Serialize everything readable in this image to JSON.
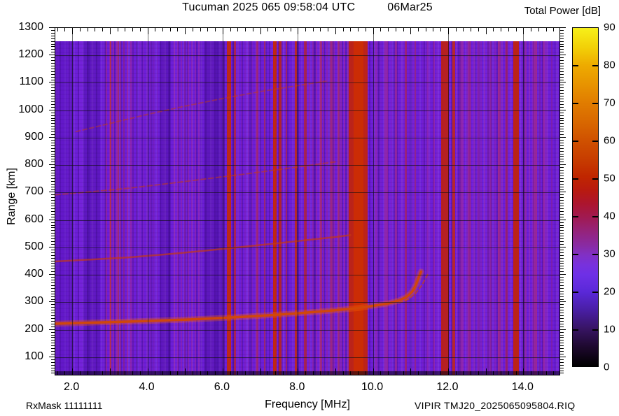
{
  "header": {
    "title_main": "Tucuman 2025 065 09:58:04 UTC",
    "title_date": "06Mar25",
    "colorbar_title": "Total Power [dB]"
  },
  "footer": {
    "rx_mask": "RxMask 11111111",
    "filename": "VIPIR  TMJ20_2025065095804.RIQ"
  },
  "chart_data": {
    "type": "heatmap",
    "title": "Tucuman 2025 065 09:58:04 UTC  06Mar25",
    "xlabel": "Frequency [MHz]",
    "ylabel": "Range [km]",
    "colorbar_label": "Total Power [dB]",
    "x_range_mhz": [
      1.55,
      15.0
    ],
    "y_range_km": [
      31,
      1300
    ],
    "x_major_ticks": [
      2,
      4,
      6,
      8,
      10,
      12,
      14
    ],
    "x_tick_labels": [
      "2.0",
      "4.0",
      "6.0",
      "8.0",
      "10.0",
      "12.0",
      "14.0"
    ],
    "x_minor_step": 0.2,
    "y_major_ticks": [
      100,
      200,
      300,
      400,
      500,
      600,
      700,
      800,
      900,
      1000,
      1100,
      1200,
      1300
    ],
    "y_minor_step": 10,
    "grid": true,
    "data_top_km": 1252,
    "blank_bottom_km": 48,
    "colorbar": {
      "min": 0,
      "max": 90,
      "tick_labels": [
        "90",
        "80",
        "70",
        "60",
        "50",
        "40",
        "30",
        "20",
        "10",
        "0"
      ],
      "inner_ticks": [
        10,
        20,
        30,
        40,
        50,
        60,
        70,
        80
      ],
      "stops": [
        {
          "p": 0,
          "c": "#f7f01a"
        },
        {
          "p": 6,
          "c": "#f2cf07"
        },
        {
          "p": 11,
          "c": "#eeab00"
        },
        {
          "p": 17,
          "c": "#e79200"
        },
        {
          "p": 22,
          "c": "#e17d00"
        },
        {
          "p": 28,
          "c": "#d86700"
        },
        {
          "p": 33,
          "c": "#d05200"
        },
        {
          "p": 39,
          "c": "#c73c00"
        },
        {
          "p": 44,
          "c": "#c02600"
        },
        {
          "p": 48,
          "c": "#b81a10"
        },
        {
          "p": 52,
          "c": "#ac152f"
        },
        {
          "p": 56,
          "c": "#a01a52"
        },
        {
          "p": 60,
          "c": "#95237a"
        },
        {
          "p": 64,
          "c": "#8a2aa0"
        },
        {
          "p": 67,
          "c": "#8130c4"
        },
        {
          "p": 70,
          "c": "#7831dc"
        },
        {
          "p": 73,
          "c": "#6e30e6"
        },
        {
          "p": 78,
          "c": "#5a28d8"
        },
        {
          "p": 83,
          "c": "#4a1fa8"
        },
        {
          "p": 89,
          "c": "#371462"
        },
        {
          "p": 94,
          "c": "#1f0930"
        },
        {
          "p": 100,
          "c": "#000000"
        }
      ]
    },
    "washes": [
      {
        "f0": 1.55,
        "f1": 2.0,
        "c": "rgba(80,15,175,0.35)",
        "striped": false
      },
      {
        "f0": 2.3,
        "f1": 2.75,
        "c": "rgba(60,10,140,0.30)",
        "striped": false
      },
      {
        "f0": 2.9,
        "f1": 3.6,
        "c": "rgba(190,45,110,0.40)",
        "striped": true
      },
      {
        "f0": 3.6,
        "f1": 4.35,
        "c": "rgba(150,40,150,0.18)",
        "striped": true
      },
      {
        "f0": 4.35,
        "f1": 4.62,
        "c": "rgba(55,8,130,0.30)",
        "striped": false
      },
      {
        "f0": 4.7,
        "f1": 5.45,
        "c": "rgba(185,45,125,0.30)",
        "striped": true
      },
      {
        "f0": 5.5,
        "f1": 6.05,
        "c": "rgba(58,10,135,0.32)",
        "striped": false
      },
      {
        "f0": 6.4,
        "f1": 6.9,
        "c": "rgba(170,40,140,0.20)",
        "striped": true
      },
      {
        "f0": 8.3,
        "f1": 9.35,
        "c": "rgba(190,45,115,0.33)",
        "striped": true
      },
      {
        "f0": 10.0,
        "f1": 11.75,
        "c": "rgba(150,35,160,0.15)",
        "striped": true
      },
      {
        "f0": 12.2,
        "f1": 13.6,
        "c": "rgba(180,42,130,0.25)",
        "striped": true
      },
      {
        "f0": 14.15,
        "f1": 14.65,
        "c": "rgba(180,42,135,0.25)",
        "striped": true
      }
    ],
    "rfi_bands": [
      {
        "f": 3.02,
        "w": 0.05,
        "c": "#c03028",
        "o": 0.7
      },
      {
        "f": 3.22,
        "w": 0.04,
        "c": "#b83040",
        "o": 0.6
      },
      {
        "f": 6.17,
        "w": 0.1,
        "c": "#c22a08",
        "o": 0.92
      },
      {
        "f": 6.33,
        "w": 0.06,
        "c": "#b52336",
        "o": 0.8
      },
      {
        "f": 6.92,
        "w": 0.05,
        "c": "#ae2858",
        "o": 0.7
      },
      {
        "f": 7.12,
        "w": 0.05,
        "c": "#b22748",
        "o": 0.7
      },
      {
        "f": 7.39,
        "w": 0.1,
        "c": "#c52708",
        "o": 0.95
      },
      {
        "f": 7.53,
        "w": 0.06,
        "c": "#bc2414",
        "o": 0.85
      },
      {
        "f": 7.7,
        "w": 0.05,
        "c": "#b02442",
        "o": 0.7
      },
      {
        "f": 7.95,
        "w": 0.07,
        "c": "#c12a10",
        "o": 0.85
      },
      {
        "f": 8.2,
        "w": 0.07,
        "c": "#b62336",
        "o": 0.8
      },
      {
        "f": 8.62,
        "w": 0.05,
        "c": "#ab2968",
        "o": 0.72
      },
      {
        "f": 8.9,
        "w": 0.05,
        "c": "#ad2a62",
        "o": 0.7
      },
      {
        "f": 9.1,
        "w": 0.04,
        "c": "#b22b50",
        "o": 0.7
      },
      {
        "f": 9.61,
        "w": 0.5,
        "c": "#c02410",
        "o": 0.95
      },
      {
        "f": 9.61,
        "w": 0.26,
        "c": "#cb2d04",
        "o": 0.95
      },
      {
        "f": 10.08,
        "w": 0.04,
        "c": "#a028a0",
        "o": 0.6
      },
      {
        "f": 10.35,
        "w": 0.09,
        "c": "#a52b96",
        "o": 0.6
      },
      {
        "f": 10.62,
        "w": 0.06,
        "c": "#a82b8e",
        "o": 0.62
      },
      {
        "f": 10.88,
        "w": 0.05,
        "c": "#b22560",
        "o": 0.68
      },
      {
        "f": 11.13,
        "w": 0.04,
        "c": "#aa2a76",
        "o": 0.6
      },
      {
        "f": 11.46,
        "w": 0.05,
        "c": "#9f28a6",
        "o": 0.55
      },
      {
        "f": 11.63,
        "w": 0.04,
        "c": "#a52b98",
        "o": 0.58
      },
      {
        "f": 11.92,
        "w": 0.2,
        "c": "#bb2118",
        "o": 0.95
      },
      {
        "f": 12.15,
        "w": 0.06,
        "c": "#c32912",
        "o": 0.85
      },
      {
        "f": 12.36,
        "w": 0.05,
        "c": "#a22b98",
        "o": 0.6
      },
      {
        "f": 12.56,
        "w": 0.08,
        "c": "#a92b7e",
        "o": 0.64
      },
      {
        "f": 12.82,
        "w": 0.04,
        "c": "#9f2aa0",
        "o": 0.55
      },
      {
        "f": 13.12,
        "w": 0.05,
        "c": "#a52b90",
        "o": 0.6
      },
      {
        "f": 13.36,
        "w": 0.06,
        "c": "#ab2a76",
        "o": 0.64
      },
      {
        "f": 13.56,
        "w": 0.05,
        "c": "#b12758",
        "o": 0.68
      },
      {
        "f": 13.8,
        "w": 0.15,
        "c": "#c0230e",
        "o": 0.95
      },
      {
        "f": 14.06,
        "w": 0.05,
        "c": "#a32b96",
        "o": 0.6
      },
      {
        "f": 14.32,
        "w": 0.1,
        "c": "#ab2a7e",
        "o": 0.62
      },
      {
        "f": 14.56,
        "w": 0.05,
        "c": "#a52b92",
        "o": 0.58
      },
      {
        "f": 14.76,
        "w": 0.04,
        "c": "#9d28a6",
        "o": 0.5
      }
    ],
    "traces": [
      {
        "name": "trace-4f-echo",
        "c": "#bf3a1e",
        "w": 2,
        "o": 0.5,
        "dash": "6 4",
        "halo": false,
        "points": [
          [
            2.1,
            922
          ],
          [
            3.0,
            952
          ],
          [
            4.0,
            985
          ],
          [
            5.0,
            1015
          ],
          [
            6.0,
            1043
          ],
          [
            7.0,
            1068
          ],
          [
            8.0,
            1090
          ],
          [
            8.75,
            1106
          ]
        ]
      },
      {
        "name": "trace-3f-echo",
        "c": "#c23a16",
        "w": 2,
        "o": 0.55,
        "dash": "7 4",
        "halo": false,
        "points": [
          [
            1.55,
            692
          ],
          [
            2.5,
            703
          ],
          [
            3.5,
            716
          ],
          [
            4.5,
            732
          ],
          [
            5.5,
            749
          ],
          [
            6.5,
            766
          ],
          [
            7.5,
            784
          ],
          [
            8.3,
            799
          ],
          [
            9.0,
            812
          ]
        ]
      },
      {
        "name": "trace-2f-echo",
        "c": "#c63a10",
        "w": 2.5,
        "o": 0.68,
        "dash": "",
        "halo": false,
        "points": [
          [
            1.55,
            449
          ],
          [
            2.5,
            456
          ],
          [
            3.5,
            464
          ],
          [
            4.5,
            475
          ],
          [
            5.5,
            488
          ],
          [
            6.5,
            502
          ],
          [
            7.5,
            516
          ],
          [
            8.3,
            528
          ],
          [
            9.0,
            538
          ],
          [
            9.4,
            545
          ]
        ]
      },
      {
        "name": "trace-x-mode-cusp",
        "c": "#c84312",
        "w": 2,
        "o": 0.7,
        "dash": "5 4",
        "halo": false,
        "points": [
          [
            10.7,
            298
          ],
          [
            10.95,
            312
          ],
          [
            11.15,
            335
          ],
          [
            11.3,
            362
          ],
          [
            11.42,
            392
          ],
          [
            11.48,
            408
          ]
        ]
      },
      {
        "name": "trace-1f-main",
        "c": "#d24806",
        "w": 3.5,
        "o": 0.95,
        "dash": "",
        "halo": true,
        "points": [
          [
            1.55,
            222
          ],
          [
            2.0,
            224
          ],
          [
            3.0,
            228
          ],
          [
            4.0,
            232
          ],
          [
            5.0,
            237
          ],
          [
            6.0,
            243
          ],
          [
            7.0,
            251
          ],
          [
            8.0,
            260
          ],
          [
            9.0,
            271
          ],
          [
            9.6,
            279
          ],
          [
            10.0,
            287
          ],
          [
            10.4,
            296
          ],
          [
            10.7,
            307
          ],
          [
            10.9,
            320
          ],
          [
            11.05,
            340
          ],
          [
            11.15,
            365
          ],
          [
            11.22,
            392
          ],
          [
            11.28,
            412
          ]
        ]
      }
    ]
  }
}
